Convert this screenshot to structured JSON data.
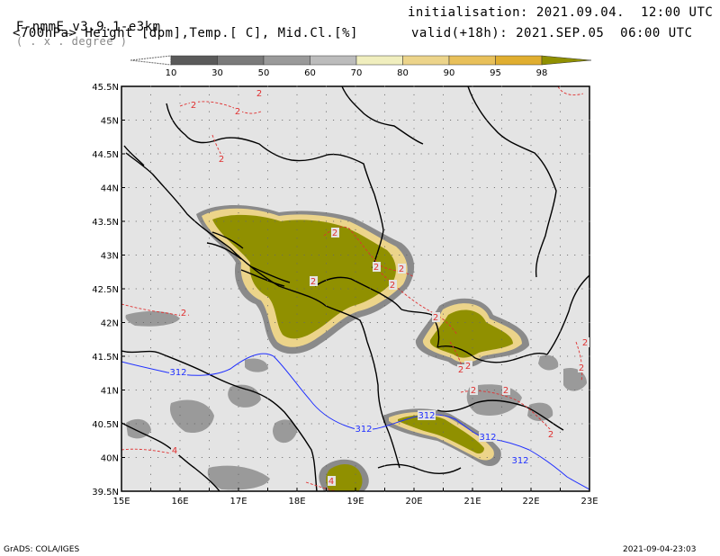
{
  "header": {
    "model": "F-nmmE_v3.9.1-e3km",
    "projection": "( . x . degree )",
    "variables": "<700hPa> Height [dpm],Temp.[ C], Mid.Cl.[%]",
    "init_label": "initialisation:",
    "init_value": "2021.09.04.  12:00 UTC",
    "valid_label": "valid(+18h):",
    "valid_value": "2021.SEP.05  06:00 UTC"
  },
  "colorbar": {
    "labels": [
      "10",
      "30",
      "50",
      "60",
      "70",
      "80",
      "90",
      "95",
      "98"
    ],
    "colors": [
      "#5a5a5a",
      "#7a7a7a",
      "#9a9a9a",
      "#bcbcbc",
      "#f0eebe",
      "#ecd48a",
      "#e8c05a",
      "#e0ae30",
      "#909000"
    ]
  },
  "map": {
    "lat_labels": [
      "45.5N",
      "45N",
      "44.5N",
      "44N",
      "43.5N",
      "43N",
      "42.5N",
      "42N",
      "41.5N",
      "41N",
      "40.5N",
      "40N",
      "39.5N"
    ],
    "lon_labels": [
      "15E",
      "16E",
      "17E",
      "18E",
      "19E",
      "20E",
      "21E",
      "22E",
      "23E"
    ],
    "lat_range": [
      39.5,
      45.5
    ],
    "lon_range": [
      15,
      23
    ],
    "background_color": "#e4e4e4",
    "height_contour": {
      "value": "312",
      "color": "#2030ff"
    },
    "temp_contour_labels": [
      "2",
      "2",
      "2",
      "2",
      "2",
      "2",
      "2",
      "2",
      "2",
      "2",
      "2",
      "2",
      "2",
      "2",
      "2",
      "2",
      "2",
      "2",
      "4",
      "4"
    ],
    "temp_color": "#e03030"
  },
  "footer": {
    "left": "GrADS: COLA/IGES",
    "right": "2021-09-04-23:03"
  }
}
